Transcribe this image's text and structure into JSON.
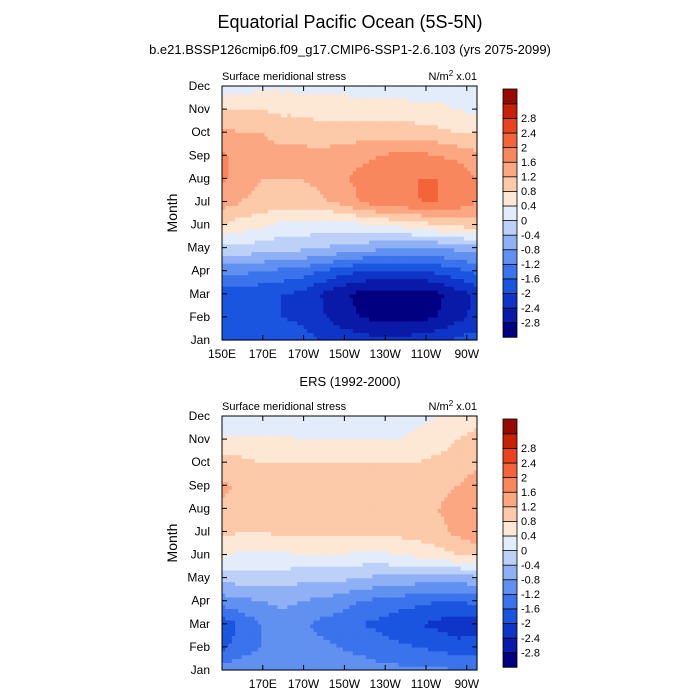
{
  "figure": {
    "title": "Equatorial Pacific Ocean (5S-5N)",
    "subtitle": "b.e21.BSSP126cmip6.f09_g17.CMIP6-SSP1-2.6.103 (yrs 2075-2099)",
    "panel2_title": "ERS (1992-2000)"
  },
  "colorbar": {
    "colors": [
      "#000080",
      "#0a1aa8",
      "#0e35c8",
      "#1a55e0",
      "#3a73ec",
      "#6090f0",
      "#8fb0f4",
      "#bcd0f8",
      "#e3ecfb",
      "#fde7d5",
      "#fcc9a9",
      "#fba782",
      "#f9875e",
      "#f4643a",
      "#e9421d",
      "#c92109",
      "#960a03"
    ],
    "labels": [
      "-2.8",
      "-2.4",
      "-2",
      "-1.6",
      "-1.2",
      "-0.8",
      "-0.4",
      "0",
      "0.4",
      "0.8",
      "1.2",
      "1.6",
      "2",
      "2.4",
      "2.8"
    ]
  },
  "chart_data": [
    {
      "type": "heatmap",
      "panel_label_left": "Surface meridional stress",
      "panel_label_right": "N/m",
      "panel_label_right_sup": "2",
      "panel_label_right_suffix": " x.01",
      "ylabel": "Month",
      "yticks": [
        "Jan",
        "Feb",
        "Mar",
        "Apr",
        "May",
        "Jun",
        "Jul",
        "Aug",
        "Sep",
        "Oct",
        "Nov",
        "Dec"
      ],
      "xticks": [
        "150E",
        "170E",
        "170W",
        "150W",
        "130W",
        "110W",
        "90W"
      ],
      "x_positions": [
        150,
        170,
        190,
        210,
        230,
        250,
        270
      ],
      "xlim": [
        150,
        275
      ],
      "ylim": [
        1,
        12
      ],
      "values": [
        [
          -1.6,
          -1.6,
          -1.6,
          -1.7,
          -1.8,
          -2.0,
          -2.1,
          -2.2,
          -2.3,
          -2.3,
          -2.2,
          -2.1,
          -1.9,
          -1.8
        ],
        [
          -1.9,
          -1.9,
          -1.9,
          -2.0,
          -2.1,
          -2.3,
          -2.6,
          -2.8,
          -2.9,
          -2.9,
          -2.9,
          -2.8,
          -2.5,
          -2.3
        ],
        [
          -1.9,
          -1.9,
          -1.9,
          -2.0,
          -2.1,
          -2.4,
          -2.7,
          -2.9,
          -3.0,
          -3.0,
          -3.0,
          -2.9,
          -2.6,
          -2.3
        ],
        [
          -1.1,
          -1.1,
          -1.2,
          -1.3,
          -1.4,
          -1.6,
          -1.8,
          -2.0,
          -2.1,
          -2.1,
          -2.1,
          -1.9,
          -1.7,
          -1.5
        ],
        [
          -0.1,
          -0.1,
          -0.2,
          -0.3,
          -0.3,
          -0.4,
          -0.5,
          -0.6,
          -0.7,
          -0.8,
          -0.8,
          -0.8,
          -0.7,
          -0.6
        ],
        [
          0.8,
          0.6,
          0.5,
          0.3,
          0.3,
          0.2,
          0.2,
          0.3,
          0.4,
          0.5,
          0.6,
          0.8,
          0.9,
          1.0
        ],
        [
          1.4,
          1.2,
          1.1,
          1.0,
          1.0,
          1.1,
          1.3,
          1.6,
          1.8,
          1.9,
          2.0,
          2.0,
          1.9,
          1.6
        ],
        [
          1.7,
          1.3,
          1.2,
          1.2,
          1.2,
          1.3,
          1.5,
          1.7,
          1.8,
          1.9,
          2.0,
          2.0,
          1.9,
          1.6
        ],
        [
          1.7,
          1.4,
          1.3,
          1.3,
          1.3,
          1.3,
          1.4,
          1.5,
          1.6,
          1.7,
          1.7,
          1.6,
          1.5,
          1.3
        ],
        [
          1.3,
          1.2,
          1.2,
          1.1,
          1.1,
          1.0,
          1.0,
          1.0,
          1.0,
          1.0,
          1.0,
          0.9,
          0.8,
          0.8
        ],
        [
          0.8,
          0.8,
          0.8,
          0.7,
          0.7,
          0.6,
          0.6,
          0.6,
          0.6,
          0.6,
          0.5,
          0.5,
          0.4,
          0.3
        ],
        [
          0.1,
          0.2,
          0.3,
          0.3,
          0.3,
          0.3,
          0.3,
          0.2,
          0.2,
          0.2,
          0.2,
          0.2,
          0.1,
          0.0
        ]
      ]
    },
    {
      "type": "heatmap",
      "panel_label_left": "Surface meridional stress",
      "panel_label_right": "N/m",
      "panel_label_right_sup": "2",
      "panel_label_right_suffix": " x.01",
      "ylabel": "Month",
      "yticks": [
        "Jan",
        "Feb",
        "Mar",
        "Apr",
        "May",
        "Jun",
        "Jul",
        "Aug",
        "Sep",
        "Oct",
        "Nov",
        "Dec"
      ],
      "xticks": [
        "170E",
        "170W",
        "150W",
        "130W",
        "110W",
        "90W"
      ],
      "x_positions": [
        170,
        190,
        210,
        230,
        250,
        270
      ],
      "xlim": [
        150,
        275
      ],
      "ylim": [
        1,
        12
      ],
      "values": [
        [
          -1.0,
          -0.9,
          -0.9,
          -0.8,
          -0.9,
          -0.9,
          -1.0,
          -1.0,
          -1.1,
          -1.1,
          -1.1,
          -1.1,
          -1.2,
          -1.2
        ],
        [
          -1.7,
          -1.4,
          -1.2,
          -1.0,
          -1.0,
          -1.1,
          -1.2,
          -1.3,
          -1.4,
          -1.5,
          -1.6,
          -1.7,
          -1.8,
          -1.8
        ],
        [
          -1.9,
          -1.5,
          -1.2,
          -1.0,
          -1.1,
          -1.3,
          -1.4,
          -1.6,
          -1.7,
          -1.9,
          -2.0,
          -2.1,
          -2.3,
          -2.2
        ],
        [
          -1.0,
          -0.9,
          -0.8,
          -0.7,
          -0.8,
          -0.9,
          -1.0,
          -1.2,
          -1.3,
          -1.4,
          -1.5,
          -1.6,
          -1.6,
          -1.5
        ],
        [
          -0.3,
          -0.2,
          -0.2,
          -0.2,
          -0.3,
          -0.3,
          -0.3,
          -0.4,
          -0.5,
          -0.5,
          -0.6,
          -0.6,
          -0.6,
          -0.5
        ],
        [
          0.5,
          0.3,
          0.3,
          0.3,
          0.4,
          0.4,
          0.4,
          0.3,
          0.3,
          0.4,
          0.5,
          0.6,
          0.8,
          0.9
        ],
        [
          0.9,
          0.8,
          0.8,
          0.9,
          0.9,
          0.9,
          0.9,
          0.9,
          0.9,
          0.9,
          1.0,
          1.1,
          1.3,
          1.5
        ],
        [
          1.1,
          1.0,
          0.9,
          0.9,
          0.9,
          0.9,
          0.9,
          0.9,
          1.0,
          1.0,
          1.1,
          1.2,
          1.3,
          1.5
        ],
        [
          1.3,
          1.1,
          1.0,
          1.0,
          1.0,
          1.0,
          1.0,
          1.0,
          1.0,
          1.0,
          1.0,
          1.1,
          1.2,
          1.4
        ],
        [
          0.9,
          0.9,
          0.8,
          0.8,
          0.8,
          0.8,
          0.8,
          0.8,
          0.8,
          0.8,
          0.8,
          0.9,
          1.0,
          1.1
        ],
        [
          0.5,
          0.5,
          0.5,
          0.5,
          0.4,
          0.4,
          0.4,
          0.4,
          0.4,
          0.4,
          0.5,
          0.6,
          0.8,
          1.0
        ],
        [
          0.0,
          0.0,
          0.0,
          0.1,
          0.1,
          0.1,
          0.1,
          0.2,
          0.2,
          0.2,
          0.3,
          0.4,
          0.5,
          0.6
        ]
      ]
    }
  ]
}
